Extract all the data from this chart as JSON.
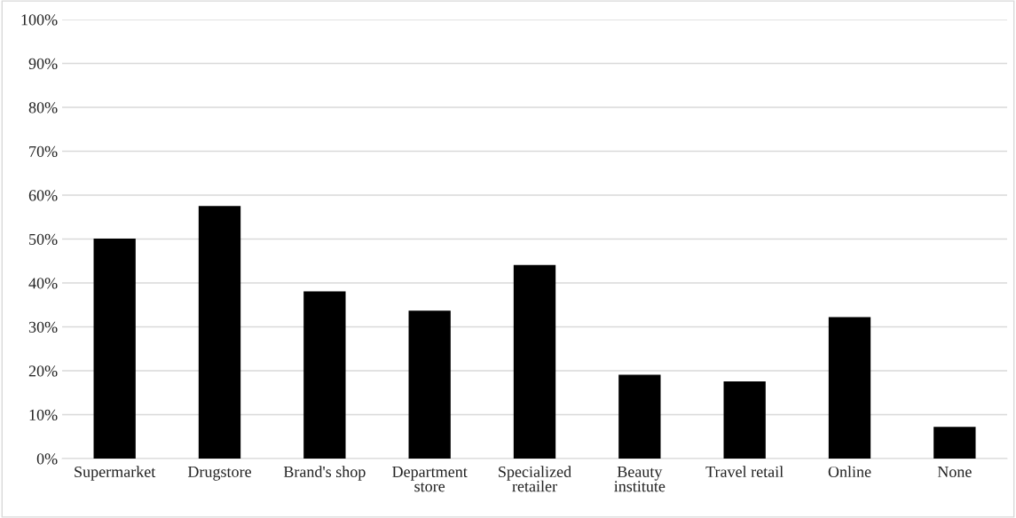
{
  "chart_data": {
    "type": "bar",
    "categories": [
      "Supermarket",
      "Drugstore",
      "Brand's shop",
      "Department\nstore",
      "Specialized\nretailer",
      "Beauty\ninstitute",
      "Travel retail",
      "Online",
      "None"
    ],
    "values": [
      50.1,
      57.5,
      38.1,
      33.7,
      44.1,
      19.1,
      17.6,
      32.2,
      7.2
    ],
    "color": "#000000",
    "ylim": [
      0,
      100
    ],
    "yticks": [
      {
        "value": 0,
        "label": "0%"
      },
      {
        "value": 10,
        "label": "10%"
      },
      {
        "value": 20,
        "label": "20%"
      },
      {
        "value": 30,
        "label": "30%"
      },
      {
        "value": 40,
        "label": "40%"
      },
      {
        "value": 50,
        "label": "50%"
      },
      {
        "value": 60,
        "label": "60%"
      },
      {
        "value": 70,
        "label": "70%"
      },
      {
        "value": 80,
        "label": "80%"
      },
      {
        "value": 90,
        "label": "90%"
      },
      {
        "value": 100,
        "label": "100%"
      }
    ],
    "grid": "y"
  }
}
